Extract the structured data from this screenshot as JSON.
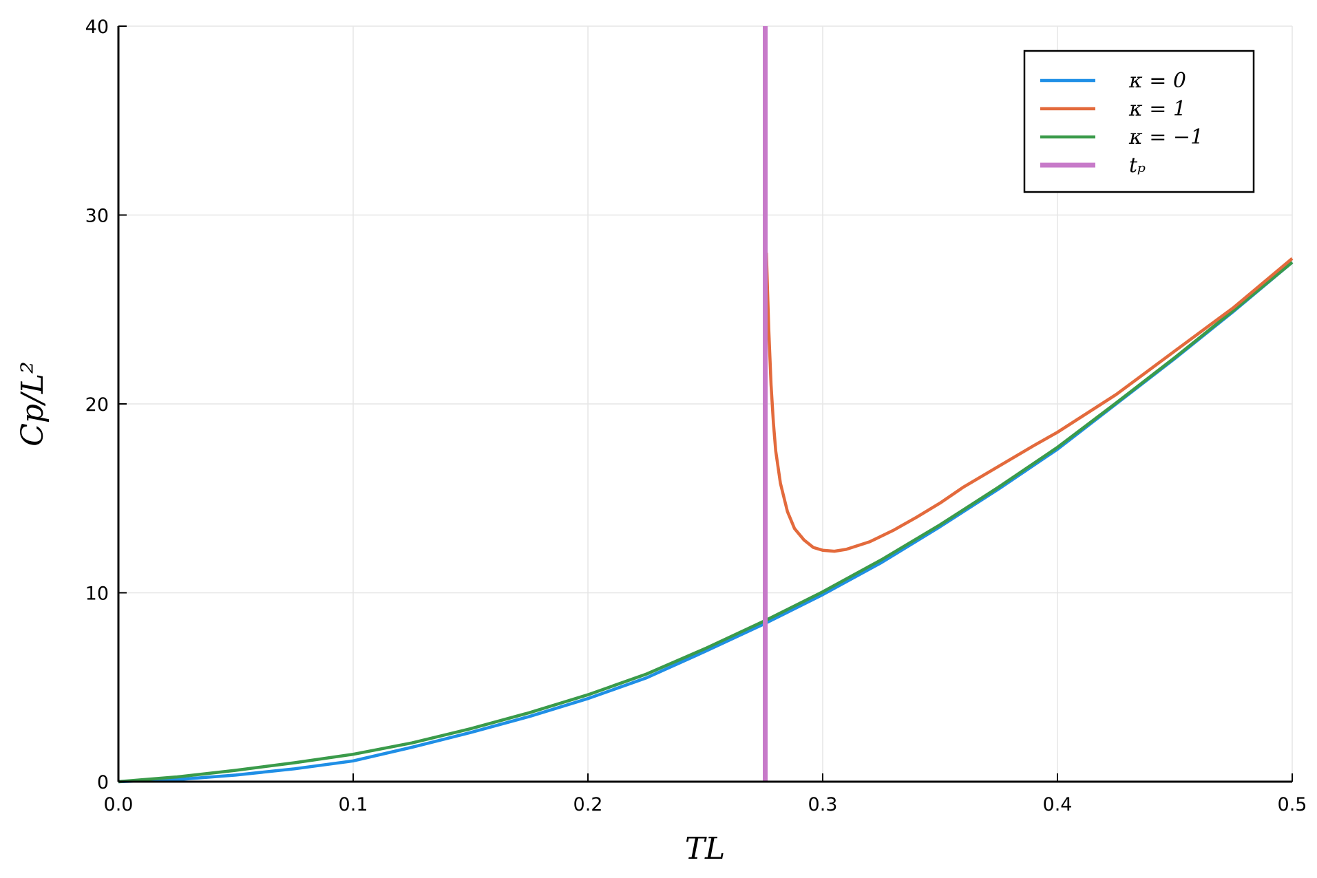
{
  "chart_data": {
    "type": "line",
    "xlabel": "TL",
    "ylabel": "Cp/L²",
    "xlim": [
      0.0,
      0.5
    ],
    "ylim": [
      0,
      40
    ],
    "grid": true,
    "legend_position": "top-right",
    "x_ticks": [
      "0.0",
      "0.1",
      "0.2",
      "0.3",
      "0.4",
      "0.5"
    ],
    "y_ticks": [
      "0",
      "10",
      "20",
      "30",
      "40"
    ],
    "series": [
      {
        "name": "κ = 0",
        "color": "#1f8fe6",
        "x": [
          0.0,
          0.025,
          0.05,
          0.075,
          0.1,
          0.125,
          0.15,
          0.175,
          0.2,
          0.225,
          0.25,
          0.275,
          0.3,
          0.325,
          0.35,
          0.375,
          0.4,
          0.425,
          0.45,
          0.475,
          0.5
        ],
        "y": [
          0.0,
          0.11,
          0.35,
          0.68,
          1.1,
          1.82,
          2.6,
          3.45,
          4.4,
          5.5,
          6.9,
          8.35,
          9.9,
          11.6,
          13.5,
          15.5,
          17.6,
          20.0,
          22.4,
          24.9,
          27.5
        ]
      },
      {
        "name": "κ = 1",
        "color": "#e36a3c",
        "x": [
          0.276,
          0.277,
          0.278,
          0.279,
          0.28,
          0.282,
          0.285,
          0.288,
          0.292,
          0.296,
          0.3,
          0.305,
          0.31,
          0.32,
          0.33,
          0.34,
          0.35,
          0.36,
          0.375,
          0.39,
          0.4,
          0.425,
          0.45,
          0.475,
          0.5
        ],
        "y": [
          28.0,
          24.0,
          21.0,
          19.0,
          17.5,
          15.8,
          14.3,
          13.4,
          12.8,
          12.4,
          12.25,
          12.2,
          12.3,
          12.7,
          13.3,
          14.0,
          14.75,
          15.6,
          16.7,
          17.8,
          18.5,
          20.5,
          22.8,
          25.1,
          27.7
        ]
      },
      {
        "name": "κ = −1",
        "color": "#3a9b4a",
        "x": [
          0.0,
          0.025,
          0.05,
          0.075,
          0.1,
          0.125,
          0.15,
          0.175,
          0.2,
          0.225,
          0.25,
          0.275,
          0.3,
          0.325,
          0.35,
          0.375,
          0.4,
          0.425,
          0.45,
          0.475,
          0.5
        ],
        "y": [
          0.0,
          0.25,
          0.6,
          1.0,
          1.45,
          2.05,
          2.8,
          3.65,
          4.6,
          5.7,
          7.05,
          8.5,
          10.05,
          11.75,
          13.6,
          15.6,
          17.7,
          20.05,
          22.45,
          24.95,
          27.5
        ]
      },
      {
        "name": "tₚ",
        "color": "#c77ac9",
        "x": [
          0.2755,
          0.2755
        ],
        "y": [
          0,
          40
        ]
      }
    ]
  }
}
